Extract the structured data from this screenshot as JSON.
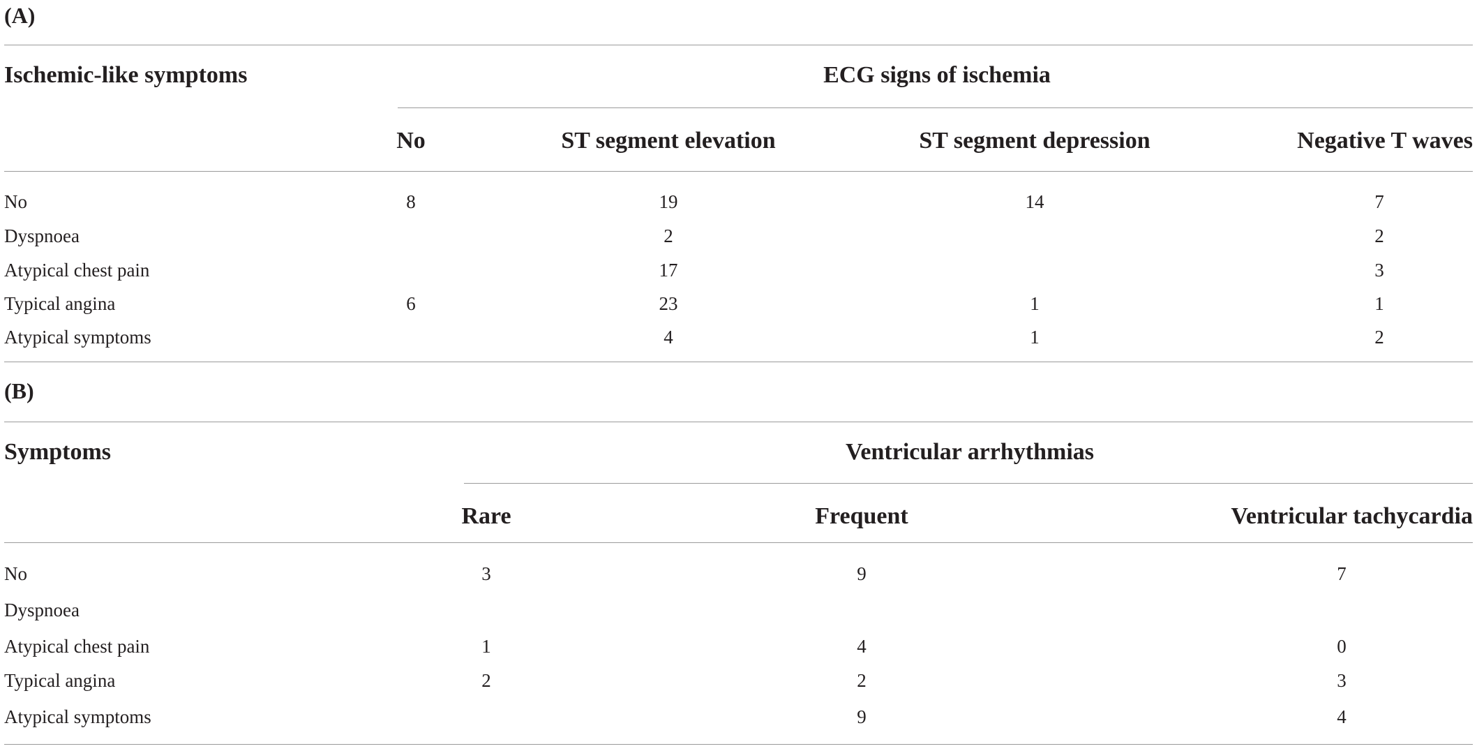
{
  "section_a": {
    "label": "(A)",
    "row_header": "Ischemic-like symptoms",
    "group_header": "ECG signs of ischemia",
    "columns": [
      "No",
      "ST segment elevation",
      "ST segment depression",
      "Negative T waves"
    ],
    "rows": [
      {
        "label": "No",
        "values": [
          "8",
          "19",
          "14",
          "7"
        ]
      },
      {
        "label": "Dyspnoea",
        "values": [
          "",
          "2",
          "",
          "2"
        ]
      },
      {
        "label": "Atypical chest pain",
        "values": [
          "",
          "17",
          "",
          "3"
        ]
      },
      {
        "label": "Typical angina",
        "values": [
          "6",
          "23",
          "1",
          "1"
        ]
      },
      {
        "label": "Atypical symptoms",
        "values": [
          "",
          "4",
          "1",
          "2"
        ]
      }
    ]
  },
  "section_b": {
    "label": "(B)",
    "row_header": "Symptoms",
    "group_header": "Ventricular arrhythmias",
    "columns": [
      "Rare",
      "Frequent",
      "Ventricular tachycardia"
    ],
    "rows": [
      {
        "label": "No",
        "values": [
          "3",
          "9",
          "7"
        ]
      },
      {
        "label": "Dyspnoea",
        "values": [
          "",
          "",
          ""
        ]
      },
      {
        "label": "Atypical chest pain",
        "values": [
          "1",
          "4",
          "0"
        ]
      },
      {
        "label": "Typical angina",
        "values": [
          "2",
          "2",
          "3"
        ]
      },
      {
        "label": "Atypical symptoms",
        "values": [
          "",
          "9",
          "4"
        ]
      }
    ]
  }
}
